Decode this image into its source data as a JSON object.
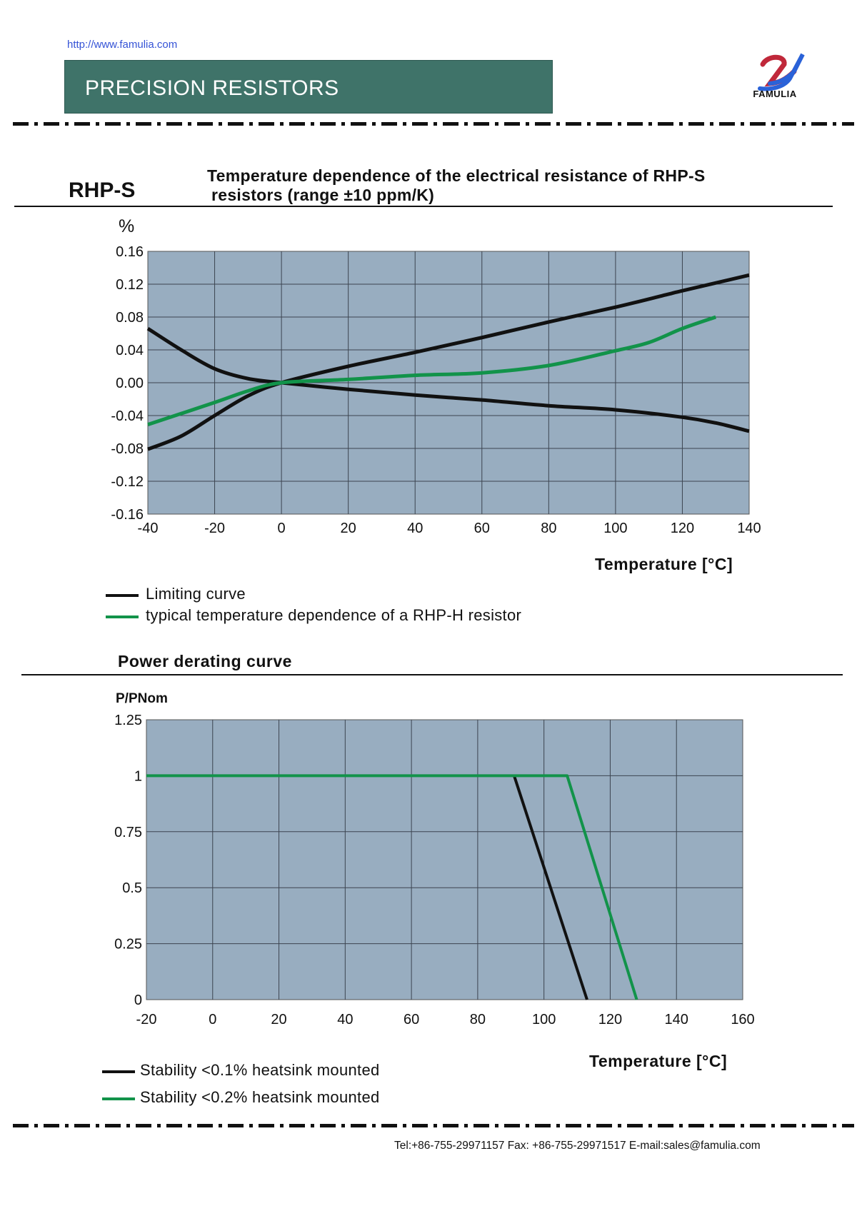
{
  "header": {
    "url": "http://www.famulia.com",
    "banner_title": "PRECISION RESISTORS",
    "logo_text": "FAMULIA"
  },
  "section1": {
    "product": "RHP-S",
    "title_line1": "Temperature dependence of the electrical resistance of RHP-S",
    "title_line2": "resistors (range ±10  ppm/K)"
  },
  "section2": {
    "title": "Power derating curve"
  },
  "footer": {
    "contact": "Tel:+86-755-29971157  Fax: +86-755-29971517    E-mail:sales@famulia.com"
  },
  "colors": {
    "plot_bg": "#98adc0",
    "banner": "#3f7369",
    "black_series": "#111111",
    "green_series": "#12934a"
  },
  "chart_data": [
    {
      "type": "line",
      "title": "Temperature dependence of the electrical resistance of RHP-S resistors (range ±10  ppm/K)",
      "xlabel": "Temperature [°C]",
      "ylabel": "%",
      "xlim": [
        -40,
        140
      ],
      "ylim": [
        -0.16,
        0.16
      ],
      "xticks": [
        "-40",
        "-20",
        "0",
        "20",
        "40",
        "60",
        "80",
        "100",
        "120",
        "140"
      ],
      "yticks": [
        "0.16",
        "0.12",
        "0.08",
        "0.04",
        "0.00",
        "-0.04",
        "-0.08",
        "-0.12",
        "-0.16"
      ],
      "grid": true,
      "legend_placement": "bottom-left",
      "series": [
        {
          "name": "Limiting curve",
          "color": "#111111",
          "x": [
            -40,
            -30,
            -20,
            -10,
            0,
            20,
            40,
            60,
            80,
            100,
            115,
            120,
            140
          ],
          "y": [
            -0.081,
            -0.065,
            -0.04,
            -0.016,
            0,
            0.02,
            0.037,
            0.055,
            0.074,
            0.092,
            0.107,
            0.112,
            0.131
          ]
        },
        {
          "name": "Limiting curve",
          "color": "#111111",
          "legend": false,
          "x": [
            -40,
            -30,
            -20,
            -10,
            0,
            20,
            40,
            60,
            80,
            100,
            120,
            130,
            140
          ],
          "y": [
            0.066,
            0.04,
            0.017,
            0.005,
            0,
            -0.008,
            -0.015,
            -0.021,
            -0.028,
            -0.033,
            -0.042,
            -0.049,
            -0.059
          ]
        },
        {
          "name": "typical temperature dependence of a RHP-H resistor",
          "color": "#12934a",
          "x": [
            -40,
            -20,
            -10,
            0,
            20,
            40,
            60,
            80,
            100,
            110,
            120,
            130
          ],
          "y": [
            -0.051,
            -0.024,
            -0.01,
            0,
            0.004,
            0.009,
            0.012,
            0.021,
            0.039,
            0.049,
            0.066,
            0.08
          ]
        }
      ]
    },
    {
      "type": "line",
      "title": "Power derating curve",
      "xlabel": "Temperature [°C]",
      "ylabel": "P/PNom",
      "xlim": [
        -20,
        160
      ],
      "ylim": [
        0,
        1.25
      ],
      "xticks": [
        "-20",
        "0",
        "20",
        "40",
        "60",
        "80",
        "100",
        "120",
        "140",
        "160"
      ],
      "yticks": [
        "1.25",
        "1",
        "0.75",
        "0.5",
        "0.25",
        "0"
      ],
      "grid": true,
      "legend_placement": "bottom-left",
      "series": [
        {
          "name": "Stability <0.1% heatsink mounted",
          "color": "#111111",
          "x": [
            91,
            113
          ],
          "y": [
            1,
            0
          ]
        },
        {
          "name": "Stability <0.2% heatsink mounted",
          "color": "#12934a",
          "x": [
            -20,
            107,
            128
          ],
          "y": [
            1,
            1,
            0
          ]
        }
      ]
    }
  ]
}
